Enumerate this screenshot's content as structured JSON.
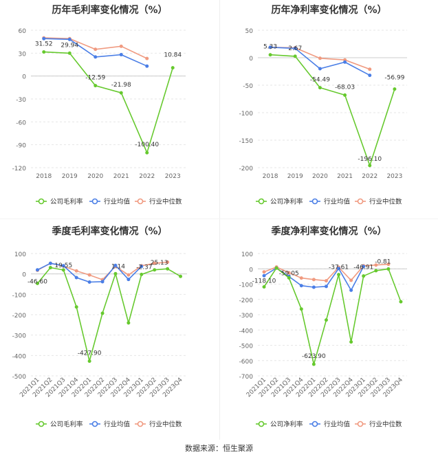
{
  "source_label": "数据来源：恒生聚源",
  "legend_labels": {
    "company_gross": "公司毛利率",
    "company_net": "公司净利率",
    "industry_avg": "行业均值",
    "industry_median": "行业中位数"
  },
  "colors": {
    "company": "#66c92e",
    "industry_avg": "#4a7ee6",
    "industry_median": "#f09a80"
  },
  "chart_data": [
    {
      "type": "line",
      "title": "历年毛利率变化情况（%）",
      "categories": [
        "2018",
        "2019",
        "2020",
        "2021",
        "2022",
        "2023"
      ],
      "yticks": [
        60,
        30,
        0,
        -30,
        -60,
        -90,
        -120
      ],
      "ylim": [
        -120,
        60
      ],
      "series": [
        {
          "name": "公司毛利率",
          "values": [
            31.52,
            29.94,
            -12.59,
            -21.98,
            -100.4,
            10.84
          ]
        },
        {
          "name": "行业均值",
          "values": [
            49,
            48,
            25,
            28,
            13,
            null
          ]
        },
        {
          "name": "行业中位数",
          "values": [
            50,
            49,
            35,
            39,
            23,
            null
          ]
        }
      ],
      "data_labels": [
        "31.52",
        "29.94",
        "-12.59",
        "-21.98",
        "-100.40",
        "10.84"
      ]
    },
    {
      "type": "line",
      "title": "历年净利率变化情况（%）",
      "categories": [
        "2018",
        "2019",
        "2020",
        "2021",
        "2022",
        "2023"
      ],
      "yticks": [
        50,
        0,
        -50,
        -100,
        -150,
        -200
      ],
      "ylim": [
        -200,
        50
      ],
      "series": [
        {
          "name": "公司净利率",
          "values": [
            5.33,
            2.67,
            -54.49,
            -68.03,
            -196.1,
            -56.99
          ]
        },
        {
          "name": "行业均值",
          "values": [
            19,
            17,
            -20,
            -8,
            -32,
            null
          ]
        },
        {
          "name": "行业中位数",
          "values": [
            19,
            18,
            -1,
            -4,
            -21,
            null
          ]
        }
      ],
      "data_labels": [
        "5.33",
        "2.67",
        "-54.49",
        "-68.03",
        "-196.10",
        "-56.99"
      ]
    },
    {
      "type": "line",
      "title": "季度毛利率变化情况（%）",
      "categories": [
        "2021Q1",
        "2021Q2",
        "2021Q3",
        "2021Q4",
        "2022Q1",
        "2022Q2",
        "2022Q3",
        "2022Q4",
        "2023Q1",
        "2023Q2",
        "2023Q3",
        "2023Q4"
      ],
      "yticks": [
        100,
        0,
        -100,
        -200,
        -300,
        -400,
        -500
      ],
      "ylim": [
        -500,
        100
      ],
      "series": [
        {
          "name": "公司毛利率",
          "values": [
            -46.6,
            31,
            19.55,
            -162,
            -427.9,
            -193,
            1.14,
            -240,
            -2.37,
            20,
            25.13,
            -12
          ]
        },
        {
          "name": "行业均值",
          "values": [
            20,
            52,
            40,
            -18,
            -40,
            -38,
            42,
            -27,
            37,
            null,
            null,
            null
          ]
        },
        {
          "name": "行业中位数",
          "values": [
            18,
            52,
            38,
            15,
            -5,
            -28,
            37,
            -5,
            40,
            52,
            58,
            null
          ]
        }
      ],
      "data_labels": [
        {
          "i": 0,
          "text": "-46.60"
        },
        {
          "i": 2,
          "text": "19.55"
        },
        {
          "i": 4,
          "text": "-427.90"
        },
        {
          "i": 6,
          "text": "1.14"
        },
        {
          "i": 8,
          "text": "-2.37"
        },
        {
          "i": 10,
          "text": "25.13"
        }
      ]
    },
    {
      "type": "line",
      "title": "季度净利率变化情况（%）",
      "categories": [
        "2021Q1",
        "2021Q2",
        "2021Q3",
        "2021Q4",
        "2022Q1",
        "2022Q2",
        "2022Q3",
        "2022Q4",
        "2023Q1",
        "2023Q2",
        "2023Q3",
        "2023Q4"
      ],
      "yticks": [
        100,
        0,
        -100,
        -200,
        -300,
        -400,
        -500,
        -600,
        -700
      ],
      "ylim": [
        -700,
        100
      ],
      "series": [
        {
          "name": "公司净利率",
          "values": [
            -118.1,
            5,
            -59.05,
            -263,
            -623.9,
            -335,
            -37.61,
            -478,
            -46.91,
            -12,
            -0.81,
            -215
          ]
        },
        {
          "name": "行业均值",
          "values": [
            -45,
            5,
            -50,
            -110,
            -120,
            -115,
            2,
            -140,
            15,
            null,
            null,
            null
          ]
        },
        {
          "name": "行业中位数",
          "values": [
            -20,
            12,
            -25,
            -60,
            -70,
            -78,
            10,
            -75,
            20,
            25,
            30,
            null
          ]
        }
      ],
      "data_labels": [
        {
          "i": 0,
          "text": "-118.10"
        },
        {
          "i": 2,
          "text": "-59.05"
        },
        {
          "i": 4,
          "text": "-623.90"
        },
        {
          "i": 6,
          "text": "-37.61"
        },
        {
          "i": 8,
          "text": "-46.91"
        },
        {
          "i": 10,
          "text": "-0.81"
        }
      ]
    }
  ]
}
